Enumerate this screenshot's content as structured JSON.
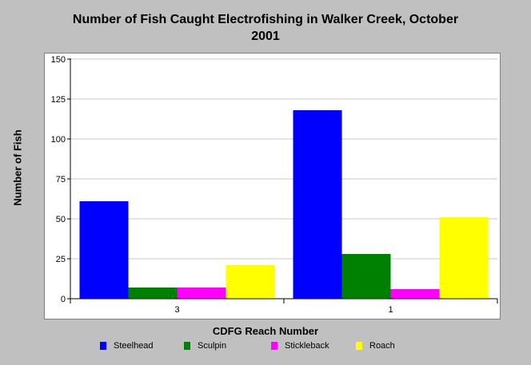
{
  "chart_data": {
    "type": "bar",
    "title_lines": [
      "Number of Fish Caught Electrofishing in Walker Creek, October",
      "2001"
    ],
    "xlabel": "CDFG Reach Number",
    "ylabel": "Number of Fish",
    "categories": [
      "3",
      "1"
    ],
    "ylim": [
      0,
      150
    ],
    "yticks": [
      0,
      25,
      50,
      75,
      100,
      125,
      150
    ],
    "grid": true,
    "legend_position": "bottom",
    "series": [
      {
        "name": "Steelhead",
        "color": "#0000ff",
        "values": [
          61,
          118
        ]
      },
      {
        "name": "Sculpin",
        "color": "#008000",
        "values": [
          7,
          28
        ]
      },
      {
        "name": "Stickleback",
        "color": "#ff00ff",
        "values": [
          7,
          6
        ]
      },
      {
        "name": "Roach",
        "color": "#ffff00",
        "values": [
          21,
          51
        ]
      }
    ]
  }
}
